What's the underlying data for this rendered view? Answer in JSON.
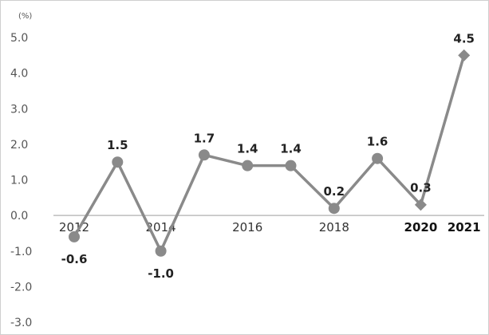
{
  "chart_data": {
    "type": "line",
    "unit_label": "(%)",
    "y_ticks": [
      "5.0",
      "4.0",
      "3.0",
      "2.0",
      "1.0",
      "0.0",
      "-1.0",
      "-2.0",
      "-3.0"
    ],
    "ylim": [
      -3.0,
      5.0
    ],
    "x_tick_labels": [
      {
        "label": "2012",
        "x": 2012,
        "bold": false
      },
      {
        "label": "2014",
        "x": 2014,
        "bold": false
      },
      {
        "label": "2016",
        "x": 2016,
        "bold": false
      },
      {
        "label": "2018",
        "x": 2018,
        "bold": false
      },
      {
        "label": "2020",
        "x": 2020,
        "bold": true
      },
      {
        "label": "2021",
        "x": 2021,
        "bold": true
      }
    ],
    "series": [
      {
        "color": "#8a8a8a",
        "points": [
          {
            "x": 2012,
            "y": -0.6,
            "label": "-0.6",
            "marker": "circle",
            "connected": false
          },
          {
            "x": 2013,
            "y": 1.5,
            "label": "1.5",
            "marker": "circle",
            "connected": true
          },
          {
            "x": 2014,
            "y": -1.0,
            "label": "-1.0",
            "marker": "circle",
            "connected": true
          },
          {
            "x": 2015,
            "y": 1.7,
            "label": "1.7",
            "marker": "circle",
            "connected": true
          },
          {
            "x": 2016,
            "y": 1.4,
            "label": "1.4",
            "marker": "circle",
            "connected": true
          },
          {
            "x": 2017,
            "y": 1.4,
            "label": "1.4",
            "marker": "circle",
            "connected": true
          },
          {
            "x": 2018,
            "y": 0.2,
            "label": "0.2",
            "marker": "circle",
            "connected": true
          },
          {
            "x": 2019,
            "y": 1.6,
            "label": "1.6",
            "marker": "circle",
            "connected": true
          },
          {
            "x": 2020,
            "y": 0.3,
            "label": "0.3",
            "marker": "diamond",
            "connected": true
          },
          {
            "x": 2021,
            "y": 4.5,
            "label": "4.5",
            "marker": "diamond",
            "connected": true
          }
        ]
      }
    ]
  }
}
